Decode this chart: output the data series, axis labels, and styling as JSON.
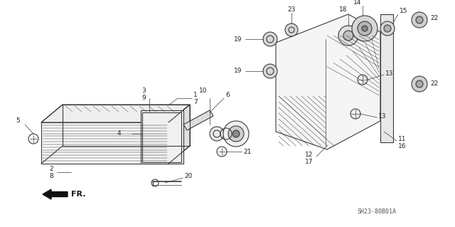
{
  "bg_color": "#ffffff",
  "lc": "#3a3a3a",
  "diagram_ref": "SH23-80B01A",
  "fr_label": "FR.",
  "label_fontsize": 6.5,
  "ref_fontsize": 6.0,
  "lw": 0.8
}
